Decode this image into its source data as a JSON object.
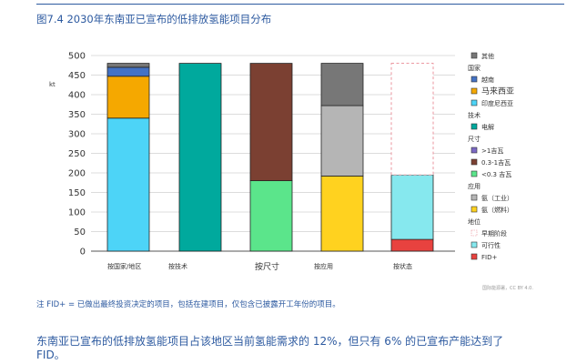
{
  "figure_title": "图7.4 2030年东南亚已宣布的低排放氢能项目分布",
  "note": "注 FID+ = 已做出最终投资决定的项目，包括在建项目，仅包含已披露开工年份的项目。",
  "source": "国际能源署，CC BY 4.0.",
  "bottom_text_line1": "东南亚已宣布的低排放氢能项目占该地区当前氢能需求的 12%，但只有 6% 的已宣布产能达到了",
  "bottom_text_line2": "FID。",
  "chart_data": {
    "type": "bar",
    "stacked": true,
    "ylabel": "kt",
    "ylim": [
      0,
      500
    ],
    "yticks": [
      0,
      50,
      100,
      150,
      200,
      250,
      300,
      350,
      400,
      450,
      500
    ],
    "grid": true,
    "legend_position": "right",
    "bars": [
      {
        "segments": [
          {
            "key": "indonesia",
            "value": 340
          },
          {
            "key": "malaysia",
            "value": 107
          },
          {
            "key": "vietnam",
            "value": 23
          },
          {
            "key": "other",
            "value": 10
          }
        ]
      },
      {
        "segments": [
          {
            "key": "electrolysis",
            "value": 480
          }
        ]
      },
      {
        "segments": [
          {
            "key": "lt03",
            "value": 180
          },
          {
            "key": "gw03_1",
            "value": 300
          }
        ]
      },
      {
        "segments": [
          {
            "key": "ammonia_fuel",
            "value": 192
          },
          {
            "key": "ammonia_industry",
            "value": 180
          },
          {
            "key": "other",
            "value": 108
          }
        ]
      },
      {
        "segments": [
          {
            "key": "fid",
            "value": 30
          },
          {
            "key": "feasibility",
            "value": 165
          },
          {
            "key": "early",
            "value": 285
          }
        ]
      }
    ],
    "group_labels": [
      {
        "text": "按国家/地区",
        "size": "small"
      },
      {
        "text": "按技术",
        "size": "small"
      },
      {
        "text": "按尺寸",
        "size": "big"
      },
      {
        "text": "按应用",
        "size": "small"
      },
      {
        "text": "按状态",
        "size": "small"
      }
    ],
    "legend": [
      {
        "type": "item",
        "key": "other",
        "label": "其他",
        "color": "#777777"
      },
      {
        "type": "header",
        "label": "国家"
      },
      {
        "type": "item",
        "key": "vietnam",
        "label": "越南",
        "color": "#4472c4"
      },
      {
        "type": "item",
        "key": "malaysia",
        "label": "马来西亚",
        "color": "#f5a800",
        "big": true
      },
      {
        "type": "item",
        "key": "indonesia",
        "label": "印度尼西亚",
        "color": "#4dd4f7"
      },
      {
        "type": "header",
        "label": "技术"
      },
      {
        "type": "item",
        "key": "electrolysis",
        "label": "电解",
        "color": "#00a99d"
      },
      {
        "type": "header",
        "label": "尺寸"
      },
      {
        "type": "item",
        "key": "gt1",
        "label": ">1吉瓦",
        "color": "#7b68c4"
      },
      {
        "type": "item",
        "key": "gw03_1",
        "label": "0.3-1吉瓦",
        "color": "#7b4032"
      },
      {
        "type": "item",
        "key": "lt03",
        "label": "<0.3 吉瓦",
        "color": "#5be58b"
      },
      {
        "type": "header",
        "label": "应用"
      },
      {
        "type": "item",
        "key": "ammonia_industry",
        "label": "氨（工业）",
        "color": "#b5b5b5"
      },
      {
        "type": "item",
        "key": "ammonia_fuel",
        "label": "氨（燃料）",
        "color": "#ffd21f"
      },
      {
        "type": "header",
        "label": "地位"
      },
      {
        "type": "item",
        "key": "early",
        "label": "早期阶段",
        "color": "#ffffff",
        "dashed": true
      },
      {
        "type": "item",
        "key": "feasibility",
        "label": "可行性",
        "color": "#86e8ee"
      },
      {
        "type": "item",
        "key": "fid",
        "label": "FID+",
        "color": "#e8423f",
        "tiny": true
      }
    ]
  }
}
